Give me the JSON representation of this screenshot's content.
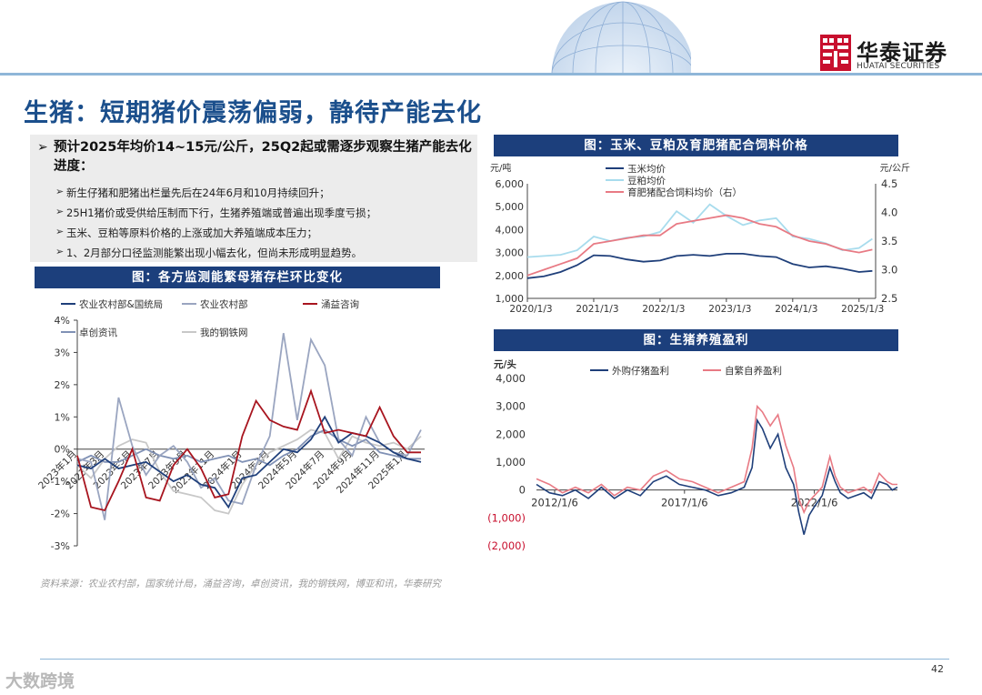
{
  "brand": {
    "name_cn": "华泰证券",
    "name_en": "HUATAI SECURITIES",
    "color": "#c8102e"
  },
  "page": {
    "title": "生猪：短期猪价震荡偏弱，静待产能去化",
    "number": "42",
    "source": "资料来源：农业农村部，国家统计局，涌益咨询，卓创资讯，我的钢铁网，博亚和讯，华泰研究",
    "watermark": "大数跨境",
    "accent_color": "#1b4f8c"
  },
  "summary": {
    "headline": "预计2025年均价14~15元/公斤，25Q2起或需逐步观察生猪产能去化进度：",
    "bullets": [
      "新生仔猪和肥猪出栏量先后在24年6月和10月持续回升；",
      "25H1猪价或受供给压制而下行，生猪养殖端或普遍出现季度亏损；",
      "玉米、豆粕等原料价格的上涨或加大养殖端成本压力；",
      "1、2月部分口径监测能繁出现小幅去化，但尚未形成明显趋势。"
    ]
  },
  "chart_data": [
    {
      "id": "sow",
      "heading": "图：各方监测能繁母猪存栏环比变化",
      "type": "line",
      "x": [
        "2023年1月",
        "2023年2月",
        "2023年3月",
        "2023年4月",
        "2023年5月",
        "2023年6月",
        "2023年7月",
        "2023年8月",
        "2023年9月",
        "2023年10月",
        "2023年11月",
        "2023年12月",
        "2024年1月",
        "2024年2月",
        "2024年3月",
        "2024年4月",
        "2024年5月",
        "2024年6月",
        "2024年7月",
        "2024年8月",
        "2024年9月",
        "2024年10月",
        "2024年11月",
        "2024年12月",
        "2025年1月",
        "2025年2月"
      ],
      "x_ticks": [
        {
          "label": "2023年1月",
          "i": 0
        },
        {
          "label": "2023年3月",
          "i": 2
        },
        {
          "label": "2023年5月",
          "i": 4
        },
        {
          "label": "2023年7月",
          "i": 6
        },
        {
          "label": "2023年9月",
          "i": 8
        },
        {
          "label": "2023年11月",
          "i": 10
        },
        {
          "label": "2024年1月",
          "i": 12
        },
        {
          "label": "2024年3月",
          "i": 14
        },
        {
          "label": "2024年5月",
          "i": 16
        },
        {
          "label": "2024年7月",
          "i": 18
        },
        {
          "label": "2024年9月",
          "i": 20
        },
        {
          "label": "2024年11月",
          "i": 22
        },
        {
          "label": "2025年1月",
          "i": 24
        }
      ],
      "ylim": [
        -3,
        4
      ],
      "y_ticks": [
        {
          "v": 4,
          "label": "4%"
        },
        {
          "v": 3,
          "label": "3%"
        },
        {
          "v": 2,
          "label": "2%"
        },
        {
          "v": 1,
          "label": "1%"
        },
        {
          "v": 0,
          "label": "0%"
        },
        {
          "v": -1,
          "label": "-1%"
        },
        {
          "v": -2,
          "label": "-2%"
        },
        {
          "v": -3,
          "label": "-3%"
        }
      ],
      "series": [
        {
          "name": "农业农村部&国统局",
          "color": "#1f3f7a",
          "values": [
            -0.5,
            -0.6,
            -0.3,
            -0.6,
            -0.5,
            -0.4,
            -0.7,
            -1.0,
            -0.8,
            -1.1,
            -1.2,
            -1.8,
            -0.9,
            -0.8,
            -0.4,
            0.0,
            -0.1,
            0.3,
            1.0,
            0.2,
            0.5,
            0.4,
            0.2,
            -0.1,
            -0.3,
            -0.4
          ]
        },
        {
          "name": "农业农村部",
          "color": "#9aa5c0",
          "values": [
            -0.3,
            -0.4,
            -2.2,
            1.6,
            0.1,
            -0.8,
            -0.2,
            0.1,
            -0.4,
            -1.2,
            -0.9,
            -1.6,
            -1.7,
            -0.5,
            0.4,
            3.6,
            0.9,
            3.4,
            2.6,
            0.3,
            -0.2,
            1.0,
            0.2,
            -0.1,
            -0.2,
            0.6
          ]
        },
        {
          "name": "涌益咨询",
          "color": "#a8151f",
          "values": [
            -0.2,
            -1.8,
            -1.9,
            -1.0,
            0.0,
            -1.5,
            -1.6,
            -0.5,
            0.0,
            -0.6,
            -1.5,
            -1.4,
            0.4,
            1.5,
            0.9,
            0.7,
            0.6,
            1.8,
            0.5,
            0.6,
            0.5,
            0.4,
            1.3,
            0.4,
            -0.1,
            -0.1
          ]
        },
        {
          "name": "卓创资讯",
          "color": "#8091b5",
          "values": [
            -0.4,
            -0.2,
            -0.4,
            -0.4,
            -0.2,
            0.0,
            -0.2,
            -0.3,
            -0.2,
            -0.4,
            -0.3,
            -0.2,
            -0.4,
            -0.3,
            -0.5,
            -0.2,
            0.0,
            0.4,
            0.6,
            0.3,
            0.1,
            0.3,
            -0.1,
            -0.2,
            -0.3,
            -0.3
          ]
        },
        {
          "name": "我的钢铁网",
          "color": "#c8c8c8",
          "values": [
            -0.5,
            -0.9,
            -0.3,
            0.1,
            0.3,
            0.2,
            -0.7,
            -1.3,
            -1.4,
            -1.5,
            -1.9,
            -2.0,
            -1.1,
            -0.5,
            -0.1,
            0.1,
            0.3,
            0.6,
            0.5,
            -0.3,
            0.4,
            0.2,
            0.1,
            0.2,
            0.0,
            0.4
          ]
        }
      ]
    },
    {
      "id": "feed",
      "heading": "图：玉米、豆粕及育肥猪配合饲料价格",
      "type": "line",
      "y_unit_left": "元/吨",
      "y_unit_right": "元/公斤",
      "ylim_left": [
        1000,
        6000
      ],
      "ylim_right": [
        2.5,
        4.5
      ],
      "y_ticks_left": [
        {
          "v": 6000,
          "label": "6,000"
        },
        {
          "v": 5000,
          "label": "5,000"
        },
        {
          "v": 4000,
          "label": "4,000"
        },
        {
          "v": 3000,
          "label": "3,000"
        },
        {
          "v": 2000,
          "label": "2,000"
        },
        {
          "v": 1000,
          "label": "1,000"
        }
      ],
      "y_ticks_right": [
        {
          "v": 4.5,
          "label": "4.5"
        },
        {
          "v": 4.0,
          "label": "4.0"
        },
        {
          "v": 3.5,
          "label": "3.5"
        },
        {
          "v": 3.0,
          "label": "3.0"
        },
        {
          "v": 2.5,
          "label": "2.5"
        }
      ],
      "x_ticks": [
        {
          "label": "2020/1/3",
          "v": 2020.0
        },
        {
          "label": "2021/1/3",
          "v": 2021.0
        },
        {
          "label": "2022/1/3",
          "v": 2022.0
        },
        {
          "label": "2023/1/3",
          "v": 2023.0
        },
        {
          "label": "2024/1/3",
          "v": 2024.0
        },
        {
          "label": "2025/1/3",
          "v": 2025.0
        }
      ],
      "xlim": [
        2020.0,
        2025.25
      ],
      "series": [
        {
          "name": "玉米均价",
          "color": "#1f3f7a",
          "axis": "left",
          "x": [
            2020.0,
            2020.25,
            2020.5,
            2020.75,
            2021.0,
            2021.25,
            2021.5,
            2021.75,
            2022.0,
            2022.25,
            2022.5,
            2022.75,
            2023.0,
            2023.25,
            2023.5,
            2023.75,
            2024.0,
            2024.25,
            2024.5,
            2024.75,
            2025.0,
            2025.2
          ],
          "y": [
            1880,
            1960,
            2150,
            2450,
            2880,
            2850,
            2700,
            2600,
            2650,
            2850,
            2900,
            2850,
            2950,
            2950,
            2850,
            2800,
            2500,
            2350,
            2400,
            2300,
            2150,
            2200
          ]
        },
        {
          "name": "豆粕均价",
          "color": "#a8dced",
          "axis": "left",
          "x": [
            2020.0,
            2020.25,
            2020.5,
            2020.75,
            2021.0,
            2021.25,
            2021.5,
            2021.75,
            2022.0,
            2022.25,
            2022.5,
            2022.75,
            2023.0,
            2023.25,
            2023.5,
            2023.75,
            2024.0,
            2024.25,
            2024.5,
            2024.75,
            2025.0,
            2025.2
          ],
          "y": [
            2800,
            2850,
            2900,
            3100,
            3700,
            3500,
            3650,
            3700,
            3900,
            4800,
            4300,
            5100,
            4600,
            4200,
            4400,
            4500,
            3700,
            3600,
            3400,
            3100,
            3200,
            3600
          ]
        },
        {
          "name": "育肥猪配合饲料均价（右）",
          "color": "#e87a84",
          "axis": "right",
          "x": [
            2020.0,
            2020.25,
            2020.5,
            2020.75,
            2021.0,
            2021.25,
            2021.5,
            2021.75,
            2022.0,
            2022.25,
            2022.5,
            2022.75,
            2023.0,
            2023.25,
            2023.5,
            2023.75,
            2024.0,
            2024.25,
            2024.5,
            2024.75,
            2025.0,
            2025.2
          ],
          "y": [
            2.9,
            3.0,
            3.1,
            3.2,
            3.45,
            3.5,
            3.55,
            3.6,
            3.6,
            3.8,
            3.85,
            3.9,
            3.95,
            3.9,
            3.8,
            3.75,
            3.6,
            3.5,
            3.45,
            3.35,
            3.3,
            3.35
          ]
        }
      ]
    },
    {
      "id": "profit",
      "heading": "图：生猪养殖盈利",
      "type": "line",
      "y_unit": "元/头",
      "ylim": [
        -2000,
        4000
      ],
      "y_ticks": [
        {
          "v": 4000,
          "label": "4,000"
        },
        {
          "v": 3000,
          "label": "3,000"
        },
        {
          "v": 2000,
          "label": "2,000"
        },
        {
          "v": 1000,
          "label": "1,000"
        },
        {
          "v": 0,
          "label": "0"
        },
        {
          "v": -1000,
          "label": "(1,000)"
        },
        {
          "v": -2000,
          "label": "(2,000)"
        }
      ],
      "x_ticks": [
        {
          "label": "2012/1/6",
          "v": 2012.0
        },
        {
          "label": "2017/1/6",
          "v": 2017.0
        },
        {
          "label": "2022/1/6",
          "v": 2022.0
        }
      ],
      "xlim": [
        2011.3,
        2025.2
      ],
      "series": [
        {
          "name": "外购仔猪盈利",
          "color": "#1f3f7a",
          "x": [
            2011.3,
            2011.8,
            2012.3,
            2012.8,
            2013.3,
            2013.8,
            2014.3,
            2014.8,
            2015.3,
            2015.8,
            2016.3,
            2016.8,
            2017.3,
            2017.8,
            2018.3,
            2018.8,
            2019.3,
            2019.6,
            2019.8,
            2020.0,
            2020.3,
            2020.6,
            2020.9,
            2021.2,
            2021.4,
            2021.6,
            2021.8,
            2022.0,
            2022.3,
            2022.6,
            2022.8,
            2023.0,
            2023.3,
            2023.6,
            2023.9,
            2024.2,
            2024.5,
            2024.8,
            2025.0,
            2025.2
          ],
          "y": [
            200,
            -100,
            -200,
            0,
            -300,
            100,
            -300,
            0,
            -200,
            300,
            500,
            200,
            100,
            0,
            -200,
            -100,
            100,
            800,
            2500,
            2200,
            1500,
            2000,
            800,
            200,
            -800,
            -1600,
            -900,
            -600,
            -200,
            800,
            300,
            -100,
            -300,
            -200,
            -100,
            -300,
            300,
            200,
            0,
            100
          ]
        },
        {
          "name": "自繁自养盈利",
          "color": "#e87a84",
          "x": [
            2011.3,
            2011.8,
            2012.3,
            2012.8,
            2013.3,
            2013.8,
            2014.3,
            2014.8,
            2015.3,
            2015.8,
            2016.3,
            2016.8,
            2017.3,
            2017.8,
            2018.3,
            2018.8,
            2019.3,
            2019.6,
            2019.8,
            2020.0,
            2020.3,
            2020.6,
            2020.9,
            2021.2,
            2021.4,
            2021.6,
            2021.8,
            2022.0,
            2022.3,
            2022.6,
            2022.8,
            2023.0,
            2023.3,
            2023.6,
            2023.9,
            2024.2,
            2024.5,
            2024.8,
            2025.0,
            2025.2
          ],
          "y": [
            400,
            200,
            -100,
            100,
            -100,
            200,
            -200,
            100,
            0,
            500,
            700,
            400,
            300,
            100,
            -100,
            100,
            300,
            1500,
            3000,
            2800,
            2300,
            2700,
            1600,
            800,
            -300,
            -800,
            -400,
            -200,
            100,
            1200,
            500,
            100,
            -100,
            0,
            100,
            -100,
            600,
            300,
            200,
            200
          ]
        }
      ]
    }
  ]
}
